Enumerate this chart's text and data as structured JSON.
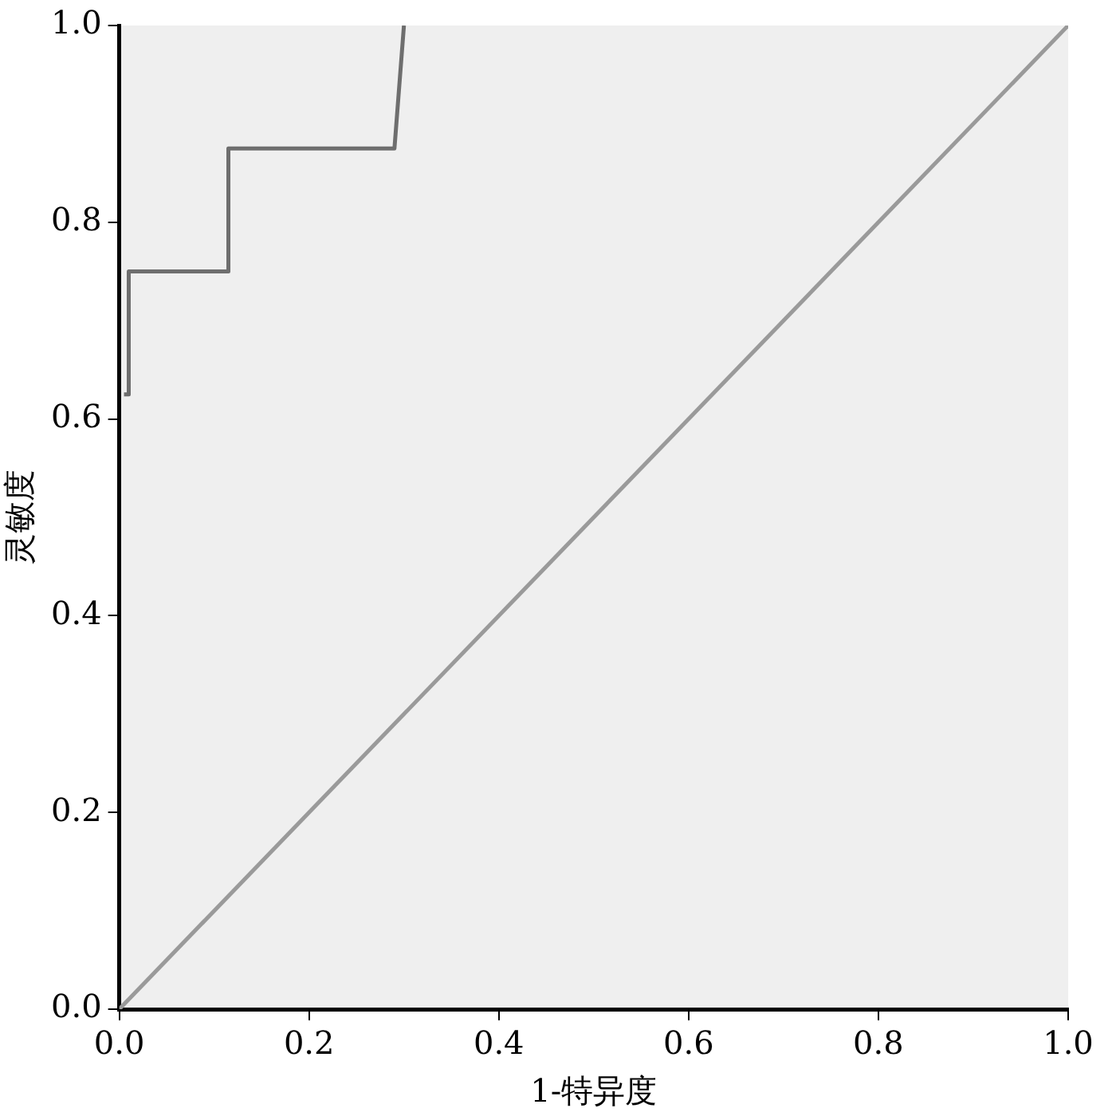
{
  "chart_data": {
    "type": "line",
    "xlabel": "1-特异度",
    "ylabel": "灵敏度",
    "xlim": [
      0,
      1
    ],
    "ylim": [
      0,
      1
    ],
    "xticks": [
      {
        "value": 0,
        "label": "0.0"
      },
      {
        "value": 0.2,
        "label": "0.2"
      },
      {
        "value": 0.4,
        "label": "0.4"
      },
      {
        "value": 0.6,
        "label": "0.6"
      },
      {
        "value": 0.8,
        "label": "0.8"
      },
      {
        "value": 1,
        "label": "1.0"
      }
    ],
    "yticks": [
      {
        "value": 0,
        "label": "0.0"
      },
      {
        "value": 0.2,
        "label": "0.2"
      },
      {
        "value": 0.4,
        "label": "0.4"
      },
      {
        "value": 0.6,
        "label": "0.6"
      },
      {
        "value": 0.8,
        "label": "0.8"
      },
      {
        "value": 1,
        "label": "1.0"
      }
    ],
    "grid": false,
    "legend": false,
    "marker": "none",
    "line_style": "solid",
    "series": [
      {
        "color": "#6e6e6e",
        "x": [
          0.005,
          0.01,
          0.01,
          0.115,
          0.115,
          0.29,
          0.3
        ],
        "values": [
          0.625,
          0.625,
          0.75,
          0.75,
          0.875,
          0.875,
          1.0
        ]
      },
      {
        "color": "#9a9a9a",
        "x": [
          0,
          1
        ],
        "values": [
          0,
          1
        ]
      }
    ]
  }
}
